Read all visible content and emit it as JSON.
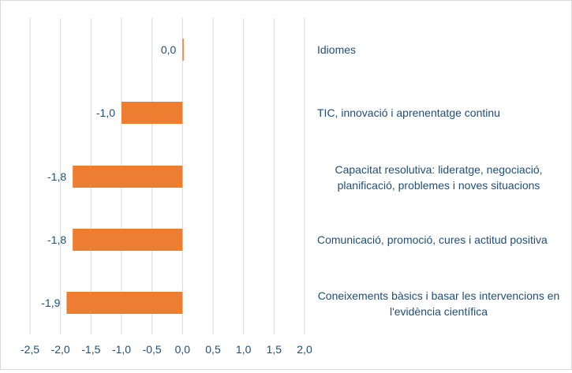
{
  "chart_data": {
    "type": "bar",
    "orientation": "horizontal",
    "categories": [
      "Idiomes",
      "TIC, innovació i aprenentatge continu",
      "Capacitat resolutiva: lideratge, negociació,\nplanificació, problemes i noves situacions",
      "Comunicació, promoció, cures i actitud positiva",
      "Coneixements bàsics i basar les intervencions en\nl'evidència científica"
    ],
    "values": [
      0.0,
      -1.0,
      -1.8,
      -1.8,
      -1.9
    ],
    "value_labels": [
      "0,0",
      "-1,0",
      "-1,8",
      "-1,8",
      "-1,9"
    ],
    "xlim": [
      -2.5,
      2.0
    ],
    "xticks": [
      -2.5,
      -2.0,
      -1.5,
      -1.0,
      -0.5,
      0.0,
      0.5,
      1.0,
      1.5,
      2.0
    ],
    "xtick_labels": [
      "-2,5",
      "-2,0",
      "-1,5",
      "-1,0",
      "-0,5",
      "0,0",
      "0,5",
      "1,0",
      "1,5",
      "2,0"
    ],
    "grid": "vertical",
    "title": "",
    "xlabel": "",
    "ylabel": "",
    "colors": {
      "bar": "#ED7D31",
      "label_text": "#1F4E79",
      "grid": "#d9d9d9"
    }
  }
}
